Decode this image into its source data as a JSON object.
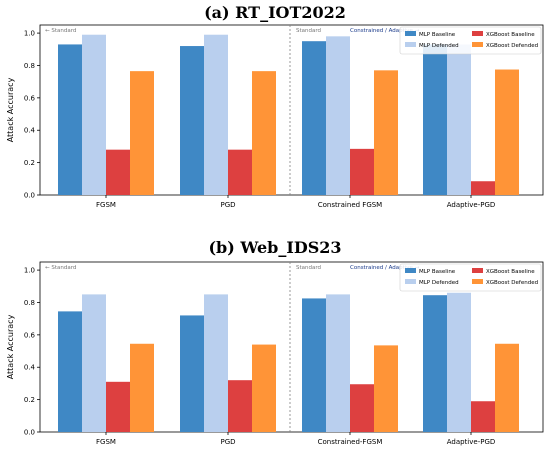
{
  "chart_data": [
    {
      "type": "bar",
      "title": "(a) RT_IOT2022",
      "ylabel": "Attack Accuracy",
      "ylim": [
        0,
        1.05
      ],
      "yticks": [
        "0.0",
        "0.2",
        "0.4",
        "0.6",
        "0.8",
        "1.0"
      ],
      "categories": [
        "FGSM",
        "PGD",
        "Constrained FGSM",
        "Adaptive-PGD"
      ],
      "region_labels": {
        "left": "← Standard",
        "right_std": "Standard",
        "right": "Constrained / Adaptive →"
      },
      "legend": {
        "placement": "top-right"
      },
      "series": [
        {
          "name": "MLP  Baseline",
          "color": "#3f88c5",
          "values": [
            0.93,
            0.92,
            0.95,
            0.93
          ]
        },
        {
          "name": "MLP  Defended",
          "color": "#b9cfee",
          "values": [
            0.99,
            0.99,
            0.98,
            0.93
          ]
        },
        {
          "name": "XGBoost  Baseline",
          "color": "#dd4040",
          "values": [
            0.28,
            0.28,
            0.285,
            0.085
          ]
        },
        {
          "name": "XGBoost  Defended",
          "color": "#ff9437",
          "values": [
            0.765,
            0.765,
            0.77,
            0.775
          ]
        }
      ]
    },
    {
      "type": "bar",
      "title": "(b) Web_IDS23",
      "ylabel": "Attack Accuracy",
      "ylim": [
        0,
        1.05
      ],
      "yticks": [
        "0.0",
        "0.2",
        "0.4",
        "0.6",
        "0.8",
        "1.0"
      ],
      "categories": [
        "FGSM",
        "PGD",
        "Constrained-FGSM",
        "Adaptive-PGD"
      ],
      "region_labels": {
        "left": "← Standard",
        "right_std": "Standard",
        "right": "Constrained / Adaptive →"
      },
      "legend": {
        "placement": "top-right"
      },
      "series": [
        {
          "name": "MLP  Baseline",
          "color": "#3f88c5",
          "values": [
            0.745,
            0.72,
            0.825,
            0.845
          ]
        },
        {
          "name": "MLP  Defended",
          "color": "#b9cfee",
          "values": [
            0.85,
            0.85,
            0.85,
            0.86
          ]
        },
        {
          "name": "XGBoost  Baseline",
          "color": "#dd4040",
          "values": [
            0.31,
            0.32,
            0.295,
            0.19
          ]
        },
        {
          "name": "XGBoost  Defended",
          "color": "#ff9437",
          "values": [
            0.545,
            0.54,
            0.535,
            0.545
          ]
        }
      ]
    }
  ]
}
